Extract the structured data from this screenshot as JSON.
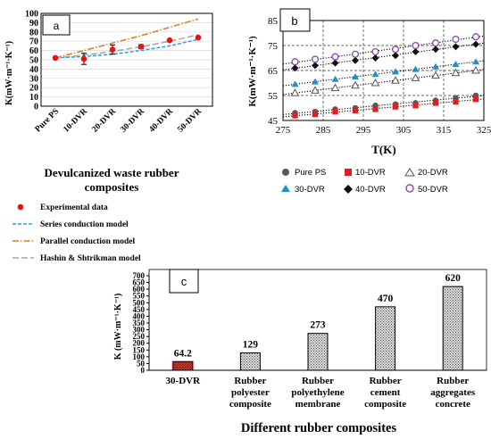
{
  "panel_a": {
    "tag": "a",
    "xlabel_line1": "Devulcanized waste rubber",
    "xlabel_line2": "composites",
    "ylabel": "K(mW·m⁻¹·K⁻¹)",
    "legend": {
      "experimental": "Experimental data",
      "series": "Series conduction model",
      "parallel": "Parallel conduction model",
      "hashin": "Hashin & Shtrikman model"
    }
  },
  "panel_b": {
    "tag": "b",
    "xlabel": "T(K)",
    "ylabel": "K(mW·m⁻¹·K⁻¹)",
    "legend": {
      "pureps": "Pure PS",
      "dvr10": "10-DVR",
      "dvr20": "20-DVR",
      "dvr30": "30-DVR",
      "dvr40": "40-DVR",
      "dvr50": "50-DVR"
    }
  },
  "panel_c": {
    "tag": "c",
    "xlabel": "Different rubber composites",
    "ylabel": "K (mW·m⁻¹·K⁻¹)"
  },
  "colors": {
    "experimental": "#ee1111",
    "series_model": "#29a3d6",
    "parallel_model": "#e07b1a",
    "hashin_model": "#a6a6a6",
    "pure_ps": "#595959",
    "dvr10": "#e02020",
    "dvr30": "#1e90c8",
    "dvr40": "#111111",
    "dvr50": "#8e44ad",
    "bar_first": "#c0392b",
    "bar_rest": "#bbbbbb"
  },
  "chart_data": [
    {
      "type": "line",
      "panel": "a",
      "categories": [
        "Pure PS",
        "10-DVR",
        "20-DVR",
        "30-DVR",
        "40-DVR",
        "50-DVR"
      ],
      "ylim": [
        0,
        100
      ],
      "yticks": [
        0,
        10,
        20,
        30,
        40,
        50,
        60,
        70,
        80,
        90,
        100
      ],
      "grid": true,
      "series": [
        {
          "name": "Experimental data",
          "style": "points",
          "values": [
            52,
            51,
            61,
            64.2,
            71,
            74
          ],
          "errors": [
            0,
            6,
            5,
            2,
            0,
            0
          ]
        },
        {
          "name": "Series conduction model",
          "style": "dashed",
          "values": [
            52,
            53.5,
            56,
            60,
            65,
            72
          ]
        },
        {
          "name": "Parallel conduction model",
          "style": "dashdot",
          "values": [
            52,
            60,
            68,
            76,
            85,
            94
          ]
        },
        {
          "name": "Hashin & Shtrikman model",
          "style": "longdash",
          "values": [
            52,
            55,
            59,
            64,
            70,
            77
          ]
        }
      ]
    },
    {
      "type": "scatter",
      "panel": "b",
      "xlim": [
        275,
        325
      ],
      "ylim": [
        45,
        85
      ],
      "xticks": [
        275,
        285,
        295,
        305,
        315,
        325
      ],
      "yticks": [
        45,
        55,
        65,
        75,
        85
      ],
      "x": [
        278,
        283,
        288,
        293,
        298,
        303,
        308,
        313,
        318,
        323
      ],
      "series": [
        {
          "name": "Pure PS",
          "marker": "circle-filled",
          "values": [
            48,
            48.5,
            49.5,
            50,
            51,
            51.5,
            52,
            53,
            54,
            55
          ]
        },
        {
          "name": "10-DVR",
          "marker": "square",
          "values": [
            47,
            47.5,
            48.5,
            49,
            49.5,
            50.5,
            51,
            52,
            52.5,
            53.5
          ]
        },
        {
          "name": "20-DVR",
          "marker": "triangle-open",
          "values": [
            56,
            57,
            58,
            59,
            60,
            61,
            62,
            63,
            64,
            65
          ]
        },
        {
          "name": "30-DVR",
          "marker": "triangle-filled",
          "values": [
            59.5,
            60.5,
            61.5,
            62.5,
            63.5,
            64.5,
            65.5,
            66.5,
            67.5,
            68.5
          ]
        },
        {
          "name": "40-DVR",
          "marker": "diamond",
          "values": [
            66,
            67,
            68,
            69,
            70,
            71,
            72.5,
            73.5,
            74.5,
            75.5
          ]
        },
        {
          "name": "50-DVR",
          "marker": "circle-open",
          "values": [
            68.5,
            69.5,
            70.5,
            71.5,
            72.5,
            73.5,
            75,
            76,
            77.5,
            78.5
          ]
        }
      ]
    },
    {
      "type": "bar",
      "panel": "c",
      "categories": [
        "30-DVR",
        "Rubber polyester composite",
        "Rubber polyethylene membrane",
        "Rubber cement composite",
        "Rubber aggregates concrete"
      ],
      "category_lines": [
        [
          "30-DVR"
        ],
        [
          "Rubber",
          "polyester",
          "composite"
        ],
        [
          "Rubber",
          "polyethylene",
          "membrane"
        ],
        [
          "Rubber",
          "cement",
          "composite"
        ],
        [
          "Rubber",
          "aggregates",
          "concrete"
        ]
      ],
      "values": [
        64.2,
        129,
        273,
        470,
        620
      ],
      "value_labels": [
        "64.2",
        "129",
        "273",
        "470",
        "620"
      ],
      "ylim": [
        0,
        700
      ],
      "yticks": [
        0,
        50,
        100,
        150,
        200,
        250,
        300,
        350,
        400,
        450,
        500,
        550,
        600,
        650,
        700
      ]
    }
  ]
}
